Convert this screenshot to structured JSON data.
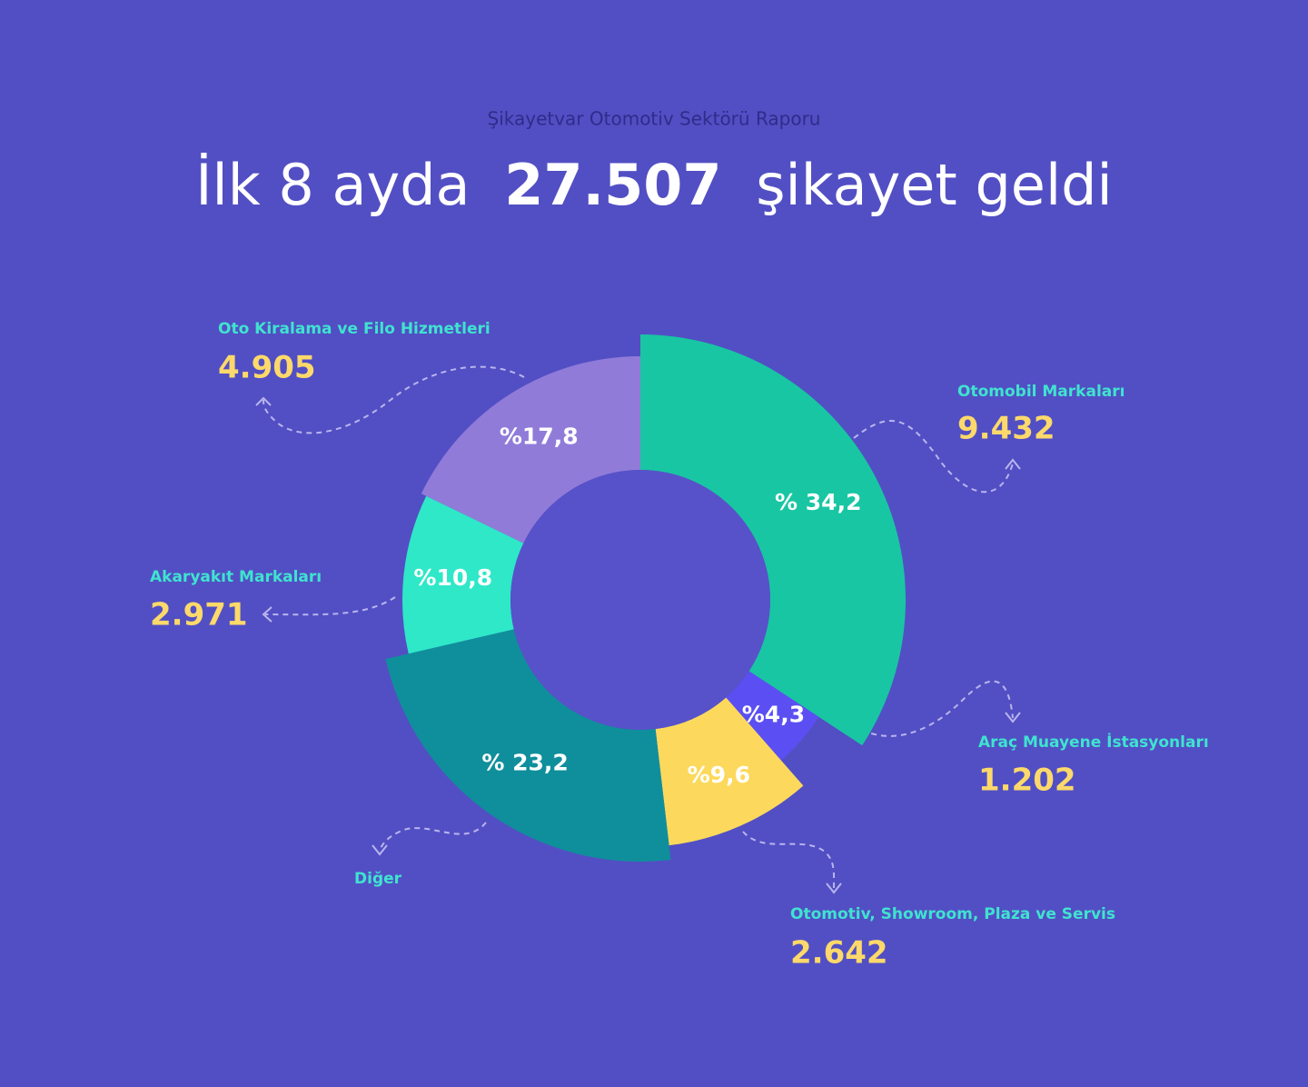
{
  "chart_data": {
    "type": "pie",
    "subtitle": "Şikayetvar Otomotiv Sektörü Raporu",
    "title_parts": [
      "İlk 8 ayda",
      "27.507",
      "şikayet geldi"
    ],
    "categories": [
      "Otomobil Markaları",
      "Araç Muayene İstasyonları",
      "Otomotiv, Showroom, Plaza ve Servis",
      "Diğer",
      "Akaryakıt Markaları",
      "Oto Kiralama ve Filo Hizmetleri"
    ],
    "values": [
      34.2,
      4.3,
      9.6,
      23.2,
      10.8,
      17.8
    ],
    "value_labels": [
      "% 34,2",
      "%4,3",
      "%9,6",
      "% 23,2",
      "%10,8",
      "%17,8"
    ],
    "counts": [
      9432,
      1202,
      2642,
      null,
      2971,
      4905
    ],
    "count_labels": [
      "9.432",
      "1.202",
      "2.642",
      null,
      "2.971",
      "4.905"
    ],
    "colors": [
      "#19c6a3",
      "#5b4ff3",
      "#fcd95c",
      "#0f8f9c",
      "#2ee8c8",
      "#917bd9"
    ]
  }
}
